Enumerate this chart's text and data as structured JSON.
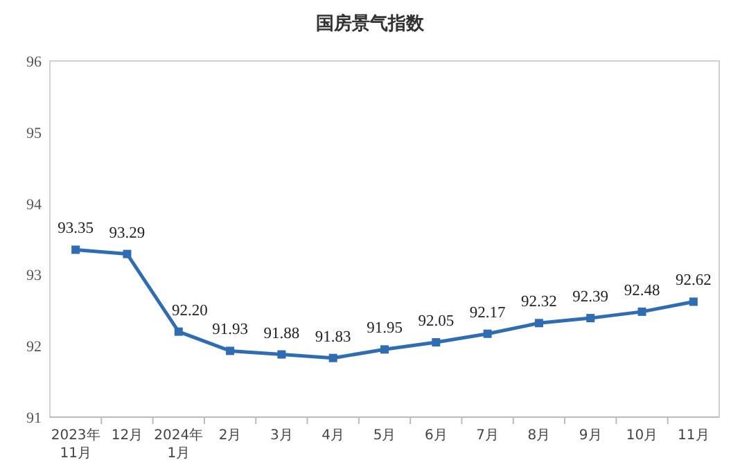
{
  "chart_data": {
    "type": "line",
    "title": "国房景气指数",
    "categories": [
      "2023年\n11月",
      "12月",
      "2024年\n1月",
      "2月",
      "3月",
      "4月",
      "5月",
      "6月",
      "7月",
      "8月",
      "9月",
      "10月",
      "11月"
    ],
    "series": [
      {
        "color": "#2e6db4",
        "values": [
          93.35,
          93.29,
          92.2,
          91.93,
          91.88,
          91.83,
          91.95,
          92.05,
          92.17,
          92.32,
          92.39,
          92.48,
          92.62
        ],
        "value_labels": [
          "93.35",
          "93.29",
          "92.20",
          "91.93",
          "91.88",
          "91.83",
          "91.95",
          "92.05",
          "92.17",
          "92.32",
          "92.39",
          "92.48",
          "92.62"
        ]
      }
    ],
    "ylim": [
      91,
      96
    ],
    "yticks": [
      91,
      92,
      93,
      94,
      95,
      96
    ],
    "marker": "square",
    "line_style": "solid",
    "grid": false
  }
}
